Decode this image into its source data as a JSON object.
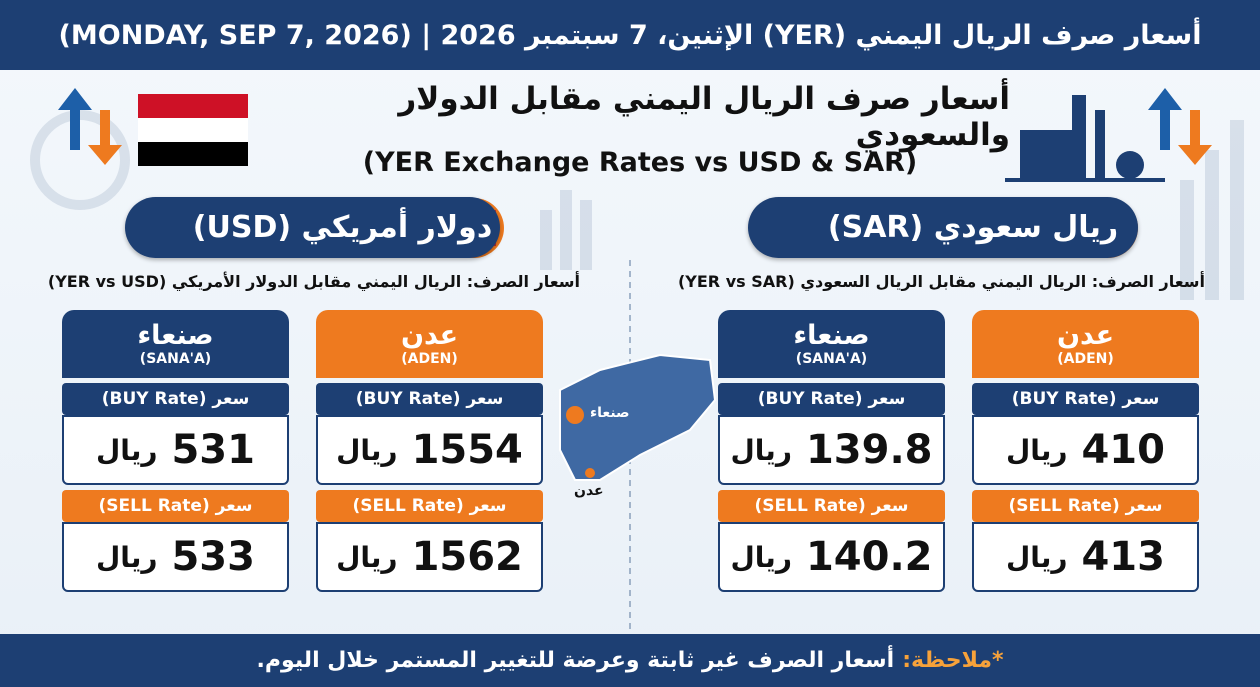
{
  "header": {
    "title": "أسعار صرف الريال اليمني (YER) الإثنين، 7 سبتمبر 2026 | (MONDAY, SEP 7, 2026)"
  },
  "title": {
    "arabic": "أسعار صرف الريال اليمني مقابل الدولار والسعودي",
    "english": "(YER Exchange Rates vs USD & SAR)"
  },
  "currency": "ريال",
  "sections": [
    {
      "label": "ريال سعودي (SAR)",
      "subtitle": "أسعار الصرف: الريال اليمني مقابل الريال السعودي (YER vs SAR)",
      "cities": [
        {
          "name": "عدن",
          "name_en": "(ADEN)",
          "buy_label": "سعر (BUY Rate)",
          "buy": 410,
          "sell_label": "سعر (SELL Rate)",
          "sell": 413
        },
        {
          "name": "صنعاء",
          "name_en": "(SANA'A)",
          "buy_label": "سعر (BUY Rate)",
          "buy": 139.8,
          "sell_label": "سعر (SELL Rate)",
          "sell": 140.2
        }
      ]
    },
    {
      "label": "دولار أمريكي (USD)",
      "subtitle": "أسعار الصرف: الريال اليمني مقابل الدولار الأمريكي (YER vs USD)",
      "cities": [
        {
          "name": "عدن",
          "name_en": "(ADEN)",
          "buy_label": "سعر (BUY Rate)",
          "buy": 1554,
          "sell_label": "سعر (SELL Rate)",
          "sell": 1562
        },
        {
          "name": "صنعاء",
          "name_en": "(SANA'A)",
          "buy_label": "سعر (BUY Rate)",
          "buy": 531,
          "sell_label": "سعر (SELL Rate)",
          "sell": 533
        }
      ]
    }
  ],
  "map": {
    "labels": [
      "صنعاء",
      "عدن"
    ]
  },
  "footer": {
    "note_label": "*ملاحظة:",
    "note": "أسعار الصرف غير ثابتة وعرضة للتغيير المستمر خلال اليوم."
  }
}
